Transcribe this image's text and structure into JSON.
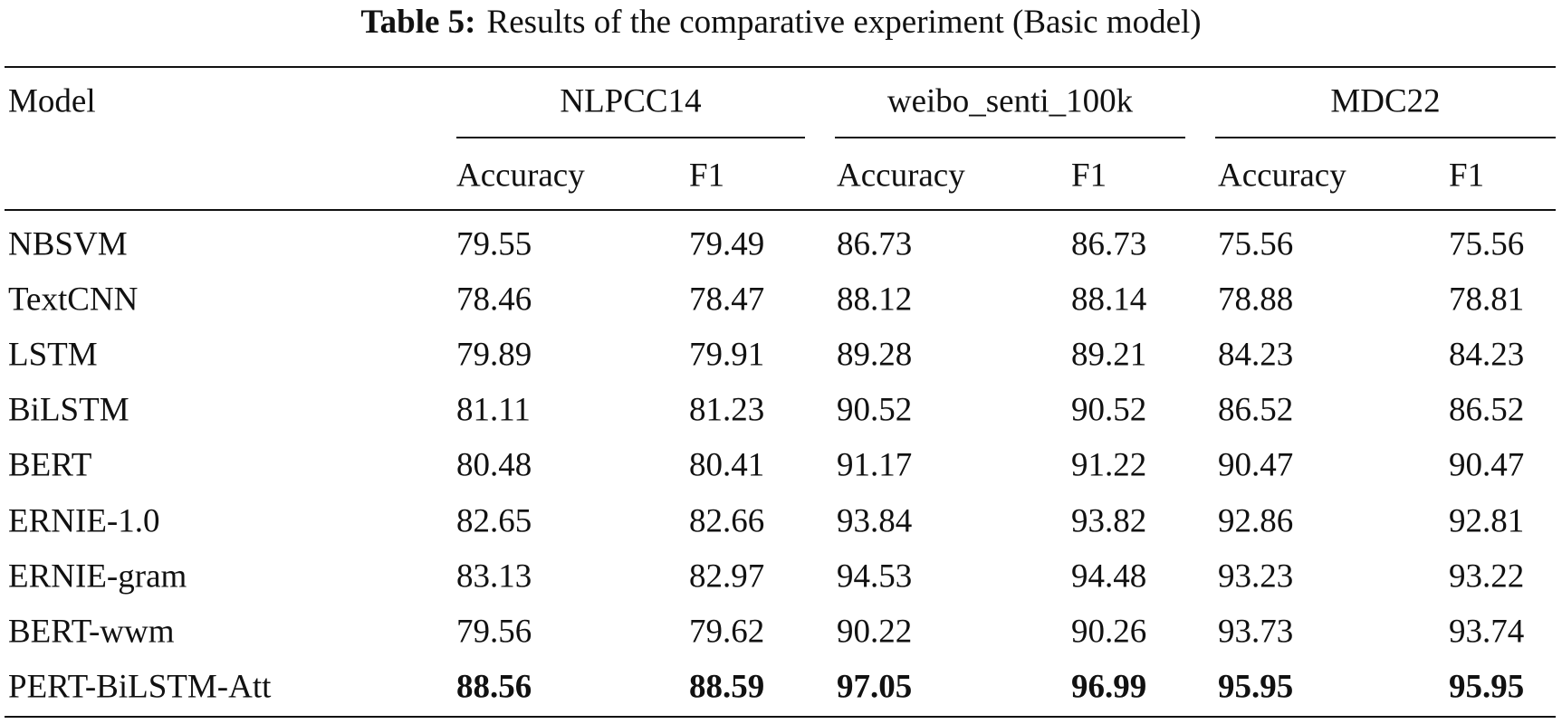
{
  "caption": {
    "label": "Table 5:",
    "text": "Results of the comparative experiment (Basic model)"
  },
  "table": {
    "model_header": "Model",
    "groups": [
      {
        "name": "NLPCC14",
        "columns": [
          "Accuracy",
          "F1"
        ]
      },
      {
        "name": "weibo_senti_100k",
        "columns": [
          "Accuracy",
          "F1"
        ]
      },
      {
        "name": "MDC22",
        "columns": [
          "Accuracy",
          "F1"
        ]
      }
    ],
    "rows": [
      [
        "NBSVM",
        "79.55",
        "79.49",
        "86.73",
        "86.73",
        "75.56",
        "75.56"
      ],
      [
        "TextCNN",
        "78.46",
        "78.47",
        "88.12",
        "88.14",
        "78.88",
        "78.81"
      ],
      [
        "LSTM",
        "79.89",
        "79.91",
        "89.28",
        "89.21",
        "84.23",
        "84.23"
      ],
      [
        "BiLSTM",
        "81.11",
        "81.23",
        "90.52",
        "90.52",
        "86.52",
        "86.52"
      ],
      [
        "BERT",
        "80.48",
        "80.41",
        "91.17",
        "91.22",
        "90.47",
        "90.47"
      ],
      [
        "ERNIE-1.0",
        "82.65",
        "82.66",
        "93.84",
        "93.82",
        "92.86",
        "92.81"
      ],
      [
        "ERNIE-gram",
        "83.13",
        "82.97",
        "94.53",
        "94.48",
        "93.23",
        "93.22"
      ],
      [
        "BERT-wwm",
        "79.56",
        "79.62",
        "90.22",
        "90.26",
        "93.73",
        "93.74"
      ],
      [
        "PERT-BiLSTM-Att",
        "88.56",
        "88.59",
        "97.05",
        "96.99",
        "95.95",
        "95.95"
      ]
    ]
  }
}
